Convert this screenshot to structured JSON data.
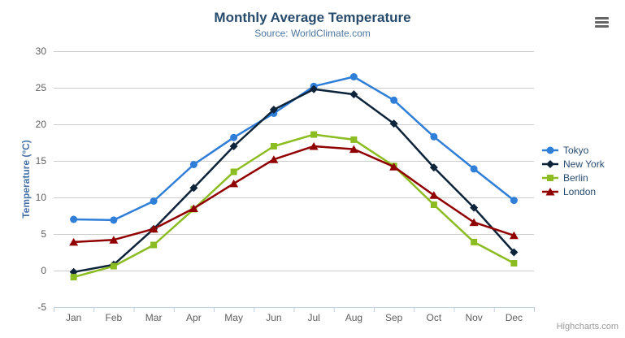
{
  "header": {
    "title": "Monthly Average Temperature",
    "subtitle": "Source: WorldClimate.com"
  },
  "credits": {
    "label": "Highcharts.com"
  },
  "menu": {
    "icon": "hamburger-icon"
  },
  "theme": {
    "background": "#ffffff",
    "title_color": "#274b6d",
    "subtitle_color": "#4d759e",
    "grid_color": "#cccccc",
    "axis_line_color": "#c0d0e0",
    "tick_color": "#c0d0e0",
    "axis_label_color": "#606060",
    "axis_title_color": "#4572a7",
    "legend_text_color": "#274b6d",
    "credits_color": "#999999",
    "menu_icon_color": "#666666"
  },
  "chart_data": {
    "type": "line",
    "title": "Monthly Average Temperature",
    "subtitle": "Source: WorldClimate.com",
    "categories": [
      "Jan",
      "Feb",
      "Mar",
      "Apr",
      "May",
      "Jun",
      "Jul",
      "Aug",
      "Sep",
      "Oct",
      "Nov",
      "Dec"
    ],
    "xlabel": "",
    "ylabel": "Temperature (°C)",
    "ylim": [
      -5,
      30
    ],
    "yticks": [
      -5,
      0,
      5,
      10,
      15,
      20,
      25,
      30
    ],
    "grid": true,
    "legend_position": "right",
    "series": [
      {
        "name": "Tokyo",
        "color": "#2f7ed8",
        "marker": "circle",
        "values": [
          7.0,
          6.9,
          9.5,
          14.5,
          18.2,
          21.5,
          25.2,
          26.5,
          23.3,
          18.3,
          13.9,
          9.6
        ]
      },
      {
        "name": "New York",
        "color": "#0d233a",
        "marker": "diamond",
        "values": [
          -0.2,
          0.8,
          5.7,
          11.3,
          17.0,
          22.0,
          24.8,
          24.1,
          20.1,
          14.1,
          8.6,
          2.5
        ]
      },
      {
        "name": "Berlin",
        "color": "#8bbc21",
        "marker": "square",
        "values": [
          -0.9,
          0.6,
          3.5,
          8.4,
          13.5,
          17.0,
          18.6,
          17.9,
          14.3,
          9.0,
          3.9,
          1.0
        ]
      },
      {
        "name": "London",
        "color": "#910000",
        "marker": "triangle",
        "values": [
          3.9,
          4.2,
          5.7,
          8.5,
          11.9,
          15.2,
          17.0,
          16.6,
          14.2,
          10.3,
          6.6,
          4.8
        ]
      }
    ]
  }
}
